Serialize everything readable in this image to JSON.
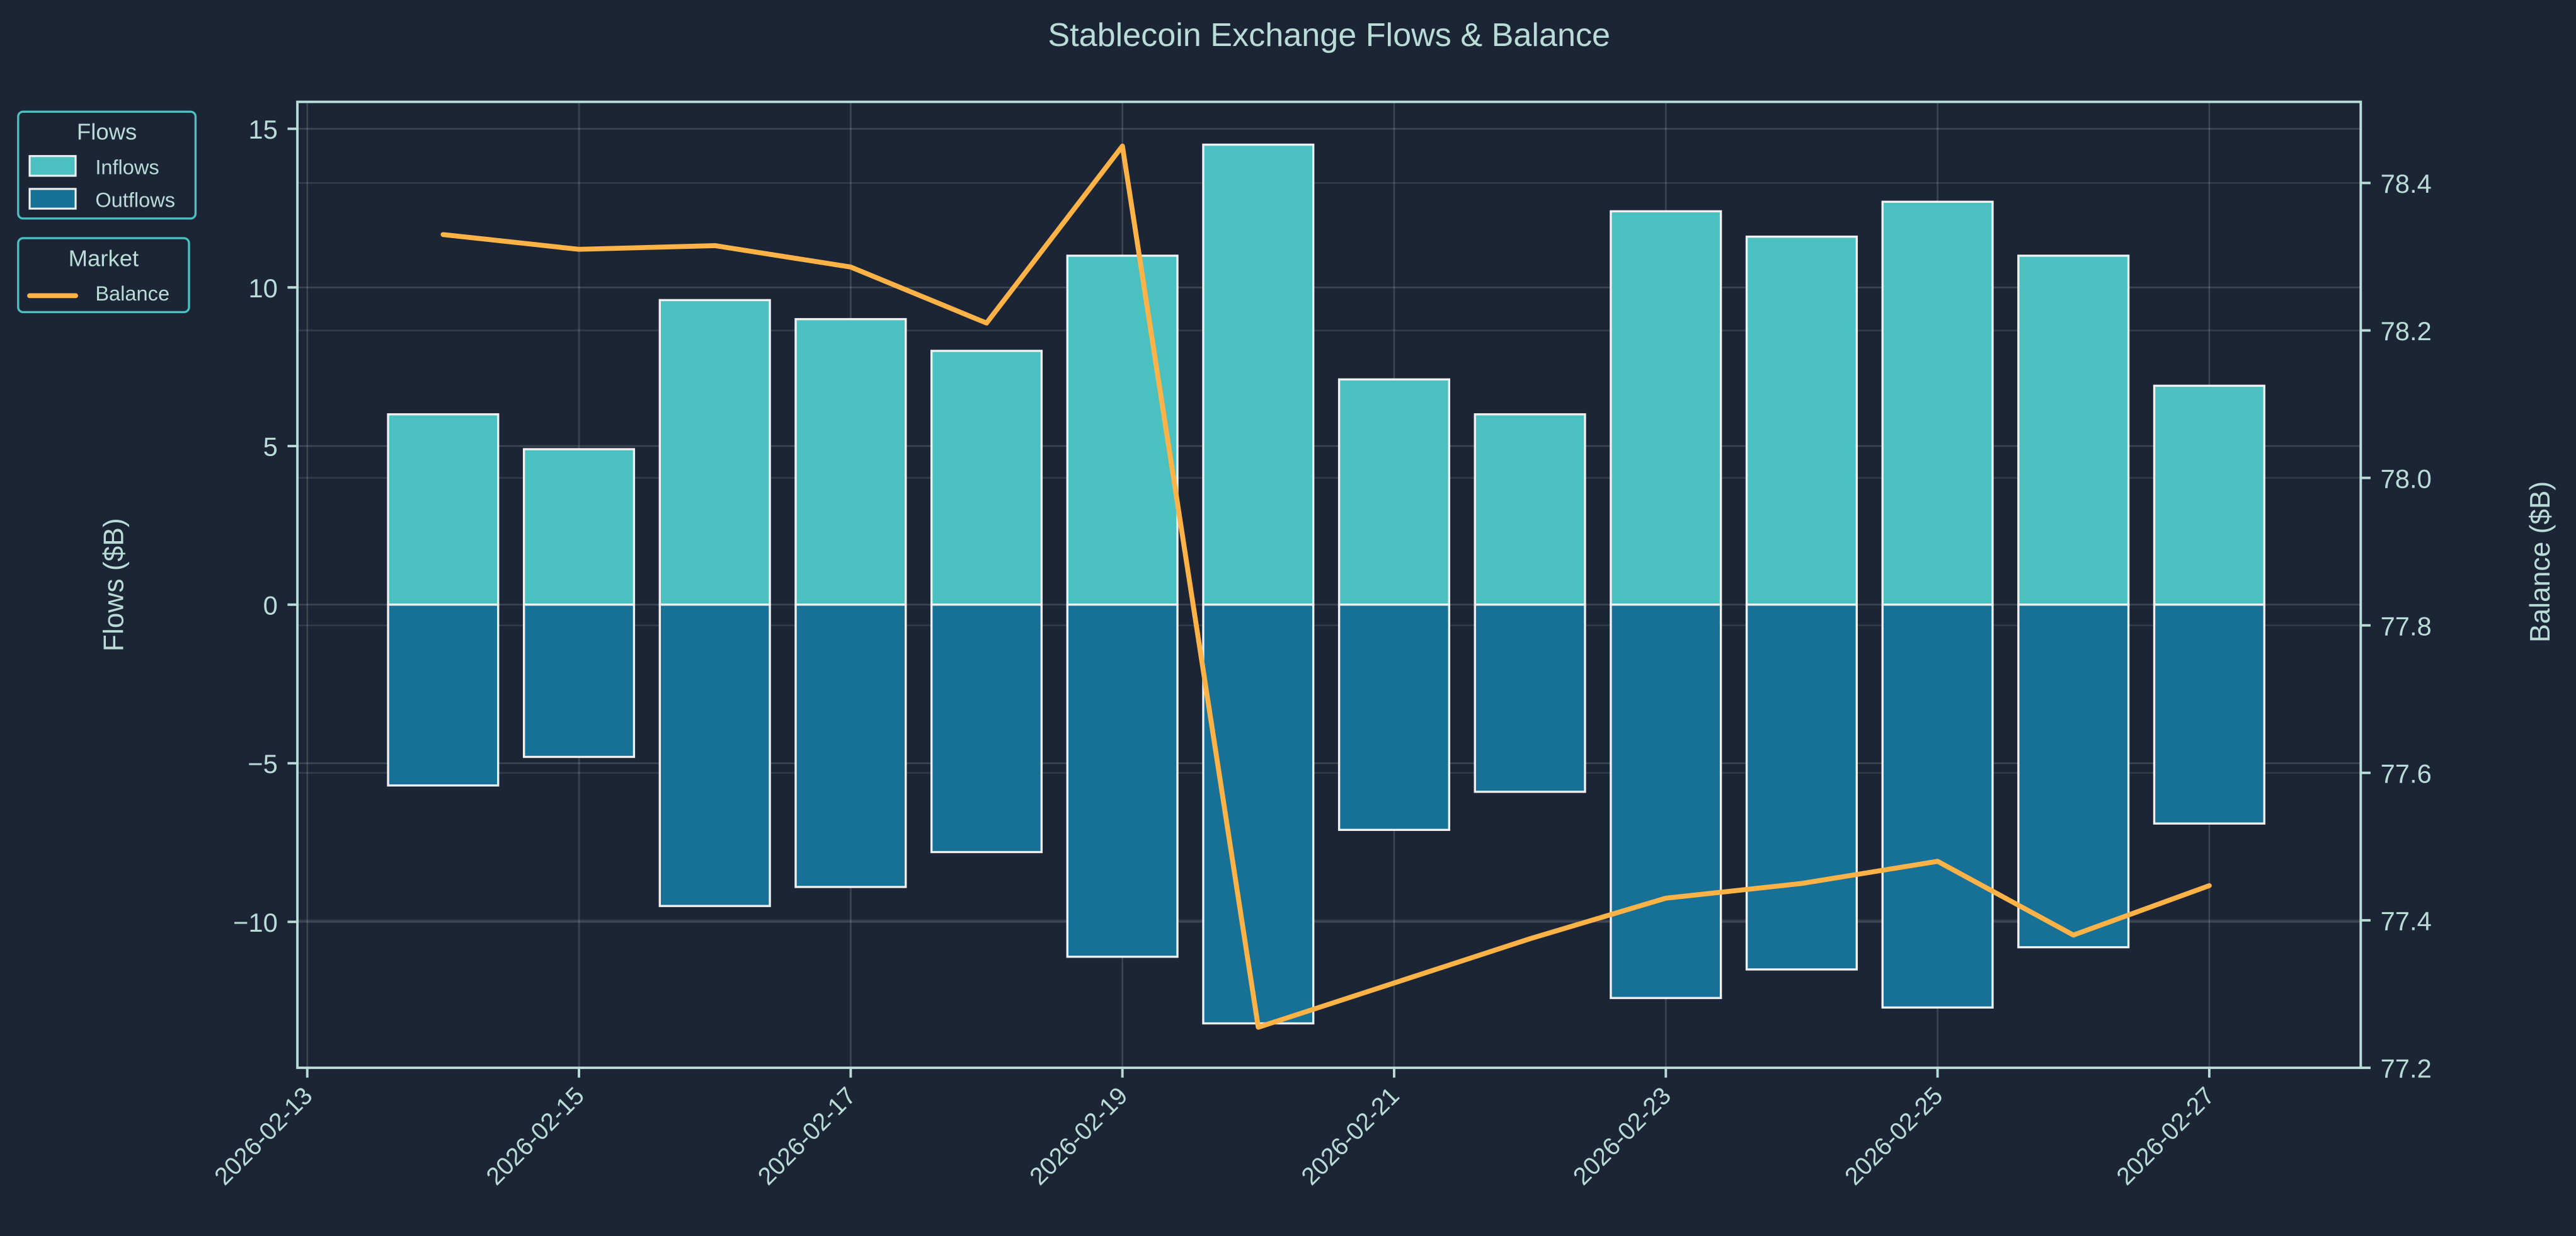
{
  "chart_data": {
    "type": "bar",
    "title": "Stablecoin Exchange Flows & Balance",
    "ylabel": "Flows ($B)",
    "ylabel_right": "Balance ($B)",
    "xlabel": "",
    "ylim": [
      -14.6,
      15.85
    ],
    "ylim_right": [
      77.2,
      78.51
    ],
    "grid": true,
    "categories": [
      "2026-02-14",
      "2026-02-15",
      "2026-02-16",
      "2026-02-17",
      "2026-02-18",
      "2026-02-19",
      "2026-02-20",
      "2026-02-21",
      "2026-02-22",
      "2026-02-23",
      "2026-02-24",
      "2026-02-25",
      "2026-02-26",
      "2026-02-27"
    ],
    "series": [
      {
        "name": "Inflows",
        "type": "bar",
        "color": "#4ac0c0",
        "values": [
          6.0,
          4.9,
          9.6,
          9.0,
          8.0,
          11.0,
          14.5,
          7.1,
          6.0,
          12.4,
          11.6,
          12.7,
          11.0,
          6.9
        ]
      },
      {
        "name": "Outflows",
        "type": "bar",
        "color": "#177096",
        "values": [
          -5.7,
          -4.8,
          -9.5,
          -8.9,
          -7.8,
          -11.1,
          -13.2,
          -7.1,
          -5.9,
          -12.4,
          -11.5,
          -12.7,
          -10.8,
          -6.9
        ]
      },
      {
        "name": "Balance",
        "type": "line",
        "axis": "right",
        "color": "#ffb347",
        "values": [
          78.33,
          78.31,
          78.315,
          78.286,
          78.21,
          78.45,
          77.255,
          77.315,
          77.375,
          77.43,
          77.45,
          77.48,
          77.38,
          77.447
        ]
      }
    ],
    "xticks": [
      "2026-02-13",
      "2026-02-15",
      "2026-02-17",
      "2026-02-19",
      "2026-02-21",
      "2026-02-23",
      "2026-02-25",
      "2026-02-27"
    ],
    "yticks": [
      "−10",
      "−5",
      "0",
      "5",
      "10",
      "15"
    ],
    "ytick_values": [
      -10,
      -5,
      0,
      5,
      10,
      15
    ],
    "yticks_right": [
      "77.2",
      "77.4",
      "77.6",
      "77.8",
      "78.0",
      "78.2",
      "78.4"
    ],
    "ytick_values_right": [
      77.2,
      77.4,
      77.6,
      77.8,
      78.0,
      78.2,
      78.4
    ],
    "legends": [
      {
        "title": "Flows",
        "entries": [
          "Inflows",
          "Outflows"
        ],
        "placement": "outside-top-left"
      },
      {
        "title": "Market",
        "entries": [
          "Balance"
        ],
        "placement": "outside-top-left"
      }
    ]
  }
}
